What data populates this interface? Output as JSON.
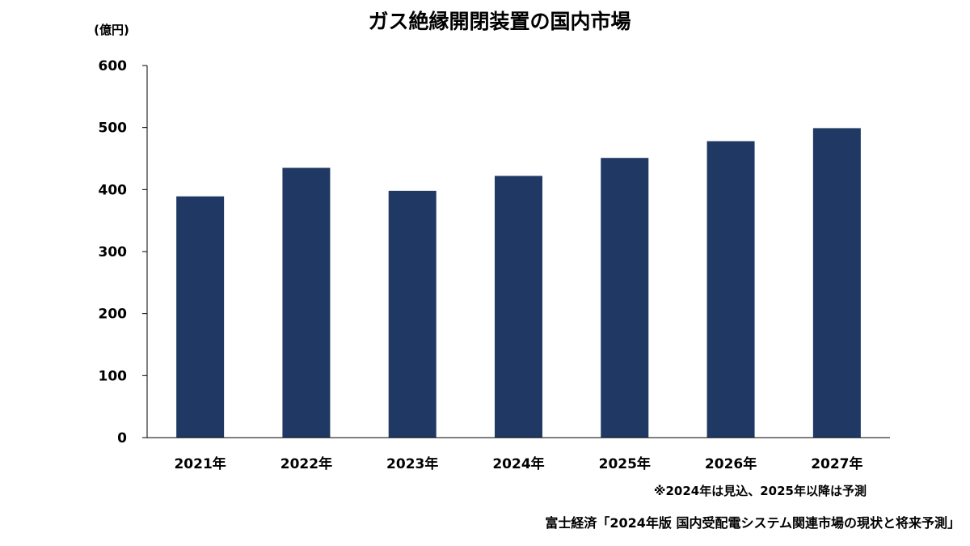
{
  "chart_data": {
    "type": "bar",
    "title": "ガス絶縁開閉装置の国内市場",
    "ylabel": "(億円)",
    "xlabel": "",
    "categories": [
      "2021年",
      "2022年",
      "2023年",
      "2024年",
      "2025年",
      "2026年",
      "2027年"
    ],
    "values": [
      389,
      435,
      398,
      422,
      451,
      478,
      499
    ],
    "ylim": [
      0,
      600
    ],
    "yticks": [
      0,
      100,
      200,
      300,
      400,
      500,
      600
    ],
    "ytick_labels": [
      "0",
      "100",
      "200",
      "300",
      "400",
      "500",
      "600"
    ],
    "grid": false,
    "legend": "none",
    "bar_color": "#203864",
    "annotations": {
      "note": "※2024年は見込、2025年以降は予測",
      "source": "富士経済「2024年版 国内受配電システム関連市場の現状と将来予測」"
    }
  }
}
